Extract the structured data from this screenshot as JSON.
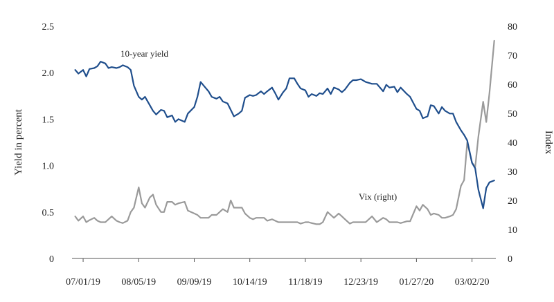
{
  "chart_data": {
    "type": "line",
    "title": "",
    "xlabel": "",
    "ylabel_left": "Yield in percent",
    "ylabel_right": "Index",
    "grid": false,
    "legend": "none",
    "xlim": [
      "2019-06-24",
      "2020-03-17"
    ],
    "ylim_left": [
      0,
      2.5
    ],
    "ylim_right": [
      0,
      80
    ],
    "x_ticks": [
      "07/01/19",
      "08/05/19",
      "09/09/19",
      "10/14/19",
      "11/18/19",
      "12/23/19",
      "01/27/20",
      "03/02/20"
    ],
    "x_tick_dates": [
      "2019-07-01",
      "2019-08-05",
      "2019-09-09",
      "2019-10-14",
      "2019-11-18",
      "2019-12-23",
      "2020-01-27",
      "2020-03-02"
    ],
    "y_ticks_left": [
      "0",
      "0.5",
      "1.0",
      "1.5",
      "2.0",
      "2.5"
    ],
    "y_ticks_right": [
      "0",
      "10",
      "20",
      "30",
      "40",
      "50",
      "60",
      "70",
      "80"
    ],
    "annotations": {
      "yield": "10-year yield",
      "vix": "Vix (right)"
    },
    "colors": {
      "yield": "#1f4e8c",
      "vix": "#9a9a9a",
      "axis": "#555555"
    },
    "series": [
      {
        "label_key": "yield",
        "axis": "left",
        "points": [
          [
            "2019-06-26",
            2.03
          ],
          [
            "2019-06-28",
            1.99
          ],
          [
            "2019-07-01",
            2.03
          ],
          [
            "2019-07-03",
            1.96
          ],
          [
            "2019-07-05",
            2.04
          ],
          [
            "2019-07-08",
            2.05
          ],
          [
            "2019-07-10",
            2.07
          ],
          [
            "2019-07-12",
            2.12
          ],
          [
            "2019-07-15",
            2.1
          ],
          [
            "2019-07-17",
            2.05
          ],
          [
            "2019-07-19",
            2.06
          ],
          [
            "2019-07-22",
            2.05
          ],
          [
            "2019-07-24",
            2.06
          ],
          [
            "2019-07-26",
            2.08
          ],
          [
            "2019-07-29",
            2.06
          ],
          [
            "2019-07-31",
            2.03
          ],
          [
            "2019-08-02",
            1.86
          ],
          [
            "2019-08-05",
            1.74
          ],
          [
            "2019-08-07",
            1.71
          ],
          [
            "2019-08-09",
            1.74
          ],
          [
            "2019-08-12",
            1.65
          ],
          [
            "2019-08-14",
            1.59
          ],
          [
            "2019-08-16",
            1.55
          ],
          [
            "2019-08-19",
            1.6
          ],
          [
            "2019-08-21",
            1.59
          ],
          [
            "2019-08-23",
            1.52
          ],
          [
            "2019-08-26",
            1.54
          ],
          [
            "2019-08-28",
            1.47
          ],
          [
            "2019-08-30",
            1.5
          ],
          [
            "2019-09-03",
            1.47
          ],
          [
            "2019-09-05",
            1.56
          ],
          [
            "2019-09-09",
            1.63
          ],
          [
            "2019-09-11",
            1.74
          ],
          [
            "2019-09-13",
            1.9
          ],
          [
            "2019-09-16",
            1.84
          ],
          [
            "2019-09-18",
            1.8
          ],
          [
            "2019-09-20",
            1.74
          ],
          [
            "2019-09-23",
            1.72
          ],
          [
            "2019-09-25",
            1.74
          ],
          [
            "2019-09-27",
            1.69
          ],
          [
            "2019-09-30",
            1.67
          ],
          [
            "2019-10-02",
            1.6
          ],
          [
            "2019-10-04",
            1.53
          ],
          [
            "2019-10-07",
            1.56
          ],
          [
            "2019-10-09",
            1.59
          ],
          [
            "2019-10-11",
            1.73
          ],
          [
            "2019-10-14",
            1.76
          ],
          [
            "2019-10-16",
            1.75
          ],
          [
            "2019-10-18",
            1.76
          ],
          [
            "2019-10-21",
            1.8
          ],
          [
            "2019-10-23",
            1.77
          ],
          [
            "2019-10-25",
            1.8
          ],
          [
            "2019-10-28",
            1.84
          ],
          [
            "2019-10-30",
            1.78
          ],
          [
            "2019-11-01",
            1.71
          ],
          [
            "2019-11-04",
            1.79
          ],
          [
            "2019-11-06",
            1.83
          ],
          [
            "2019-11-08",
            1.94
          ],
          [
            "2019-11-11",
            1.94
          ],
          [
            "2019-11-13",
            1.88
          ],
          [
            "2019-11-15",
            1.83
          ],
          [
            "2019-11-18",
            1.81
          ],
          [
            "2019-11-20",
            1.74
          ],
          [
            "2019-11-22",
            1.77
          ],
          [
            "2019-11-25",
            1.75
          ],
          [
            "2019-11-27",
            1.78
          ],
          [
            "2019-11-29",
            1.77
          ],
          [
            "2019-12-02",
            1.83
          ],
          [
            "2019-12-04",
            1.77
          ],
          [
            "2019-12-06",
            1.84
          ],
          [
            "2019-12-09",
            1.82
          ],
          [
            "2019-12-11",
            1.79
          ],
          [
            "2019-12-13",
            1.82
          ],
          [
            "2019-12-16",
            1.89
          ],
          [
            "2019-12-18",
            1.92
          ],
          [
            "2019-12-20",
            1.92
          ],
          [
            "2019-12-23",
            1.93
          ],
          [
            "2019-12-26",
            1.9
          ],
          [
            "2019-12-30",
            1.88
          ],
          [
            "2020-01-02",
            1.88
          ],
          [
            "2020-01-06",
            1.8
          ],
          [
            "2020-01-08",
            1.87
          ],
          [
            "2020-01-10",
            1.84
          ],
          [
            "2020-01-13",
            1.85
          ],
          [
            "2020-01-15",
            1.79
          ],
          [
            "2020-01-17",
            1.84
          ],
          [
            "2020-01-21",
            1.77
          ],
          [
            "2020-01-23",
            1.74
          ],
          [
            "2020-01-27",
            1.61
          ],
          [
            "2020-01-29",
            1.59
          ],
          [
            "2020-01-31",
            1.51
          ],
          [
            "2020-02-03",
            1.53
          ],
          [
            "2020-02-05",
            1.65
          ],
          [
            "2020-02-07",
            1.64
          ],
          [
            "2020-02-10",
            1.56
          ],
          [
            "2020-02-12",
            1.63
          ],
          [
            "2020-02-14",
            1.59
          ],
          [
            "2020-02-17",
            1.56
          ],
          [
            "2020-02-19",
            1.56
          ],
          [
            "2020-02-21",
            1.47
          ],
          [
            "2020-02-24",
            1.38
          ],
          [
            "2020-02-26",
            1.33
          ],
          [
            "2020-02-28",
            1.27
          ],
          [
            "2020-03-02",
            1.03
          ],
          [
            "2020-03-04",
            0.97
          ],
          [
            "2020-03-06",
            0.74
          ],
          [
            "2020-03-09",
            0.54
          ],
          [
            "2020-03-11",
            0.76
          ],
          [
            "2020-03-13",
            0.82
          ],
          [
            "2020-03-16",
            0.84
          ]
        ]
      },
      {
        "label_key": "vix",
        "axis": "right",
        "points": [
          [
            "2019-06-26",
            14.5
          ],
          [
            "2019-06-28",
            13.0
          ],
          [
            "2019-07-01",
            14.5
          ],
          [
            "2019-07-03",
            12.5
          ],
          [
            "2019-07-05",
            13.2
          ],
          [
            "2019-07-08",
            14.0
          ],
          [
            "2019-07-10",
            13.0
          ],
          [
            "2019-07-12",
            12.5
          ],
          [
            "2019-07-15",
            12.5
          ],
          [
            "2019-07-17",
            13.5
          ],
          [
            "2019-07-19",
            14.5
          ],
          [
            "2019-07-22",
            13.0
          ],
          [
            "2019-07-24",
            12.5
          ],
          [
            "2019-07-26",
            12.2
          ],
          [
            "2019-07-29",
            13.0
          ],
          [
            "2019-07-31",
            16.0
          ],
          [
            "2019-08-02",
            17.5
          ],
          [
            "2019-08-05",
            24.5
          ],
          [
            "2019-08-07",
            19.0
          ],
          [
            "2019-08-09",
            17.5
          ],
          [
            "2019-08-12",
            21.0
          ],
          [
            "2019-08-14",
            22.0
          ],
          [
            "2019-08-16",
            18.5
          ],
          [
            "2019-08-19",
            16.0
          ],
          [
            "2019-08-21",
            16.0
          ],
          [
            "2019-08-23",
            19.5
          ],
          [
            "2019-08-26",
            19.5
          ],
          [
            "2019-08-28",
            18.5
          ],
          [
            "2019-08-30",
            19.0
          ],
          [
            "2019-09-03",
            19.5
          ],
          [
            "2019-09-05",
            16.5
          ],
          [
            "2019-09-09",
            15.5
          ],
          [
            "2019-09-11",
            15.0
          ],
          [
            "2019-09-13",
            14.0
          ],
          [
            "2019-09-16",
            14.0
          ],
          [
            "2019-09-18",
            14.0
          ],
          [
            "2019-09-20",
            15.0
          ],
          [
            "2019-09-23",
            15.0
          ],
          [
            "2019-09-25",
            16.0
          ],
          [
            "2019-09-27",
            17.0
          ],
          [
            "2019-09-30",
            16.0
          ],
          [
            "2019-10-02",
            20.0
          ],
          [
            "2019-10-04",
            17.5
          ],
          [
            "2019-10-07",
            17.5
          ],
          [
            "2019-10-09",
            17.5
          ],
          [
            "2019-10-11",
            15.5
          ],
          [
            "2019-10-14",
            14.0
          ],
          [
            "2019-10-16",
            13.5
          ],
          [
            "2019-10-18",
            14.0
          ],
          [
            "2019-10-21",
            14.0
          ],
          [
            "2019-10-23",
            14.0
          ],
          [
            "2019-10-25",
            13.0
          ],
          [
            "2019-10-28",
            13.5
          ],
          [
            "2019-10-30",
            13.0
          ],
          [
            "2019-11-01",
            12.5
          ],
          [
            "2019-11-04",
            12.5
          ],
          [
            "2019-11-06",
            12.5
          ],
          [
            "2019-11-08",
            12.5
          ],
          [
            "2019-11-11",
            12.5
          ],
          [
            "2019-11-13",
            12.5
          ],
          [
            "2019-11-15",
            12.0
          ],
          [
            "2019-11-18",
            12.5
          ],
          [
            "2019-11-20",
            12.5
          ],
          [
            "2019-11-22",
            12.2
          ],
          [
            "2019-11-25",
            11.8
          ],
          [
            "2019-11-27",
            11.8
          ],
          [
            "2019-11-29",
            12.5
          ],
          [
            "2019-12-02",
            16.0
          ],
          [
            "2019-12-04",
            15.0
          ],
          [
            "2019-12-06",
            14.0
          ],
          [
            "2019-12-09",
            15.5
          ],
          [
            "2019-12-11",
            14.5
          ],
          [
            "2019-12-13",
            13.5
          ],
          [
            "2019-12-16",
            12.0
          ],
          [
            "2019-12-18",
            12.5
          ],
          [
            "2019-12-20",
            12.5
          ],
          [
            "2019-12-23",
            12.5
          ],
          [
            "2019-12-26",
            12.5
          ],
          [
            "2019-12-30",
            14.5
          ],
          [
            "2020-01-02",
            12.5
          ],
          [
            "2020-01-06",
            14.0
          ],
          [
            "2020-01-08",
            13.5
          ],
          [
            "2020-01-10",
            12.5
          ],
          [
            "2020-01-13",
            12.5
          ],
          [
            "2020-01-15",
            12.5
          ],
          [
            "2020-01-17",
            12.2
          ],
          [
            "2020-01-21",
            12.8
          ],
          [
            "2020-01-23",
            12.8
          ],
          [
            "2020-01-27",
            18.0
          ],
          [
            "2020-01-29",
            16.5
          ],
          [
            "2020-01-31",
            18.5
          ],
          [
            "2020-02-03",
            17.0
          ],
          [
            "2020-02-05",
            15.0
          ],
          [
            "2020-02-07",
            15.5
          ],
          [
            "2020-02-10",
            15.0
          ],
          [
            "2020-02-12",
            14.0
          ],
          [
            "2020-02-14",
            14.0
          ],
          [
            "2020-02-17",
            14.5
          ],
          [
            "2020-02-19",
            15.0
          ],
          [
            "2020-02-21",
            17.0
          ],
          [
            "2020-02-24",
            25.0
          ],
          [
            "2020-02-26",
            27.0
          ],
          [
            "2020-02-28",
            40.0
          ],
          [
            "2020-03-02",
            33.0
          ],
          [
            "2020-03-04",
            31.5
          ],
          [
            "2020-03-06",
            42.0
          ],
          [
            "2020-03-09",
            54.0
          ],
          [
            "2020-03-11",
            47.0
          ],
          [
            "2020-03-13",
            57.0
          ],
          [
            "2020-03-16",
            75.0
          ]
        ]
      }
    ]
  }
}
